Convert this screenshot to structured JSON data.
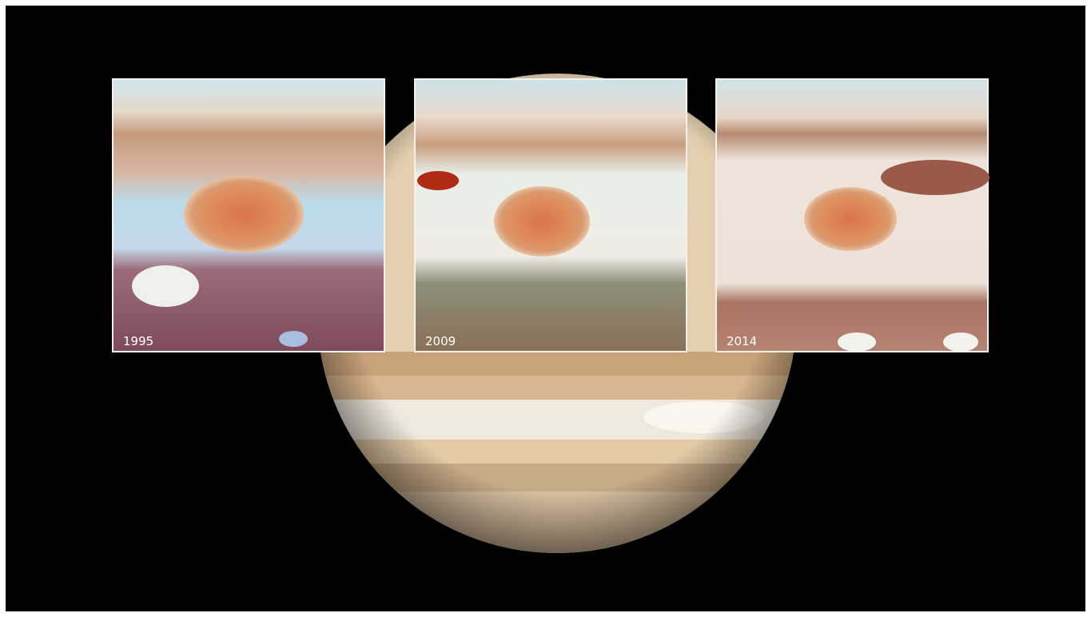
{
  "panels": [
    {
      "label": "1995"
    },
    {
      "label": "2009"
    },
    {
      "label": "2014"
    }
  ]
}
